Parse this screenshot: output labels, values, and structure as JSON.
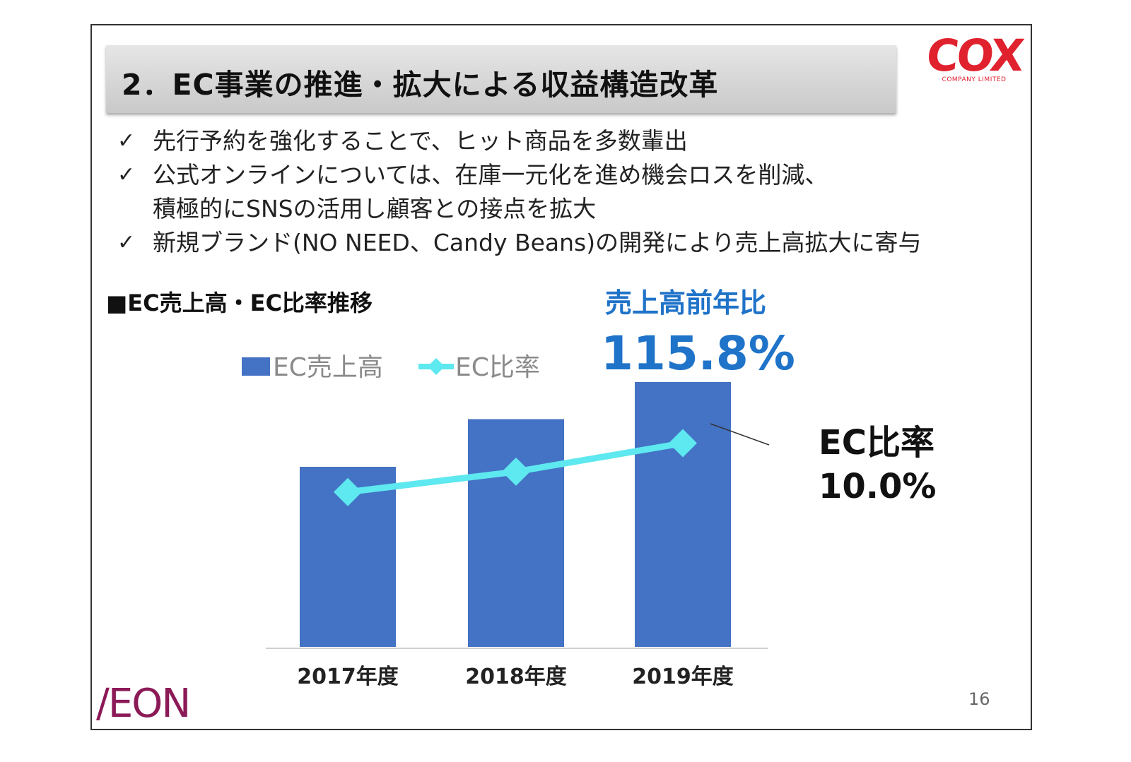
{
  "title": "2．EC事業の推進・拡大による収益構造改革",
  "logo": {
    "brand": "COX",
    "sub": "COMPANY LIMITED"
  },
  "bullets": [
    {
      "mark": "✓",
      "lines": [
        "先行予約を強化することで、ヒット商品を多数輩出"
      ]
    },
    {
      "mark": "✓",
      "lines": [
        "公式オンラインについては、在庫一元化を進め機会ロスを削減、",
        "積極的にSNSの活用し顧客との接点を拡大"
      ]
    },
    {
      "mark": "✓",
      "lines": [
        "新規ブランド(NO NEED、Candy Beans)の開発により売上高拡大に寄与"
      ]
    }
  ],
  "section_label": "■EC売上高・EC比率推移",
  "yoy": {
    "label": "売上高前年比",
    "value": "115.8%"
  },
  "ratio_annotation": {
    "label": "EC比率",
    "value": "10.0%"
  },
  "page_number": "16",
  "footer_logo": "/EON",
  "colors": {
    "bar": "#4472c4",
    "line": "#5ee8ef",
    "accent": "#1f73c8",
    "cox_red": "#e0212e"
  },
  "chart_data": {
    "type": "bar",
    "categories": [
      "2017年度",
      "2018年度",
      "2019年度"
    ],
    "series": [
      {
        "name": "EC売上高",
        "type": "bar",
        "values": [
          68,
          86,
          100
        ]
      },
      {
        "name": "EC比率",
        "type": "line",
        "values": [
          7.6,
          8.6,
          10.0
        ]
      }
    ],
    "ylim": [
      0,
      100
    ],
    "y2lim": [
      0,
      13
    ],
    "legend": "top-left",
    "grid": false
  }
}
